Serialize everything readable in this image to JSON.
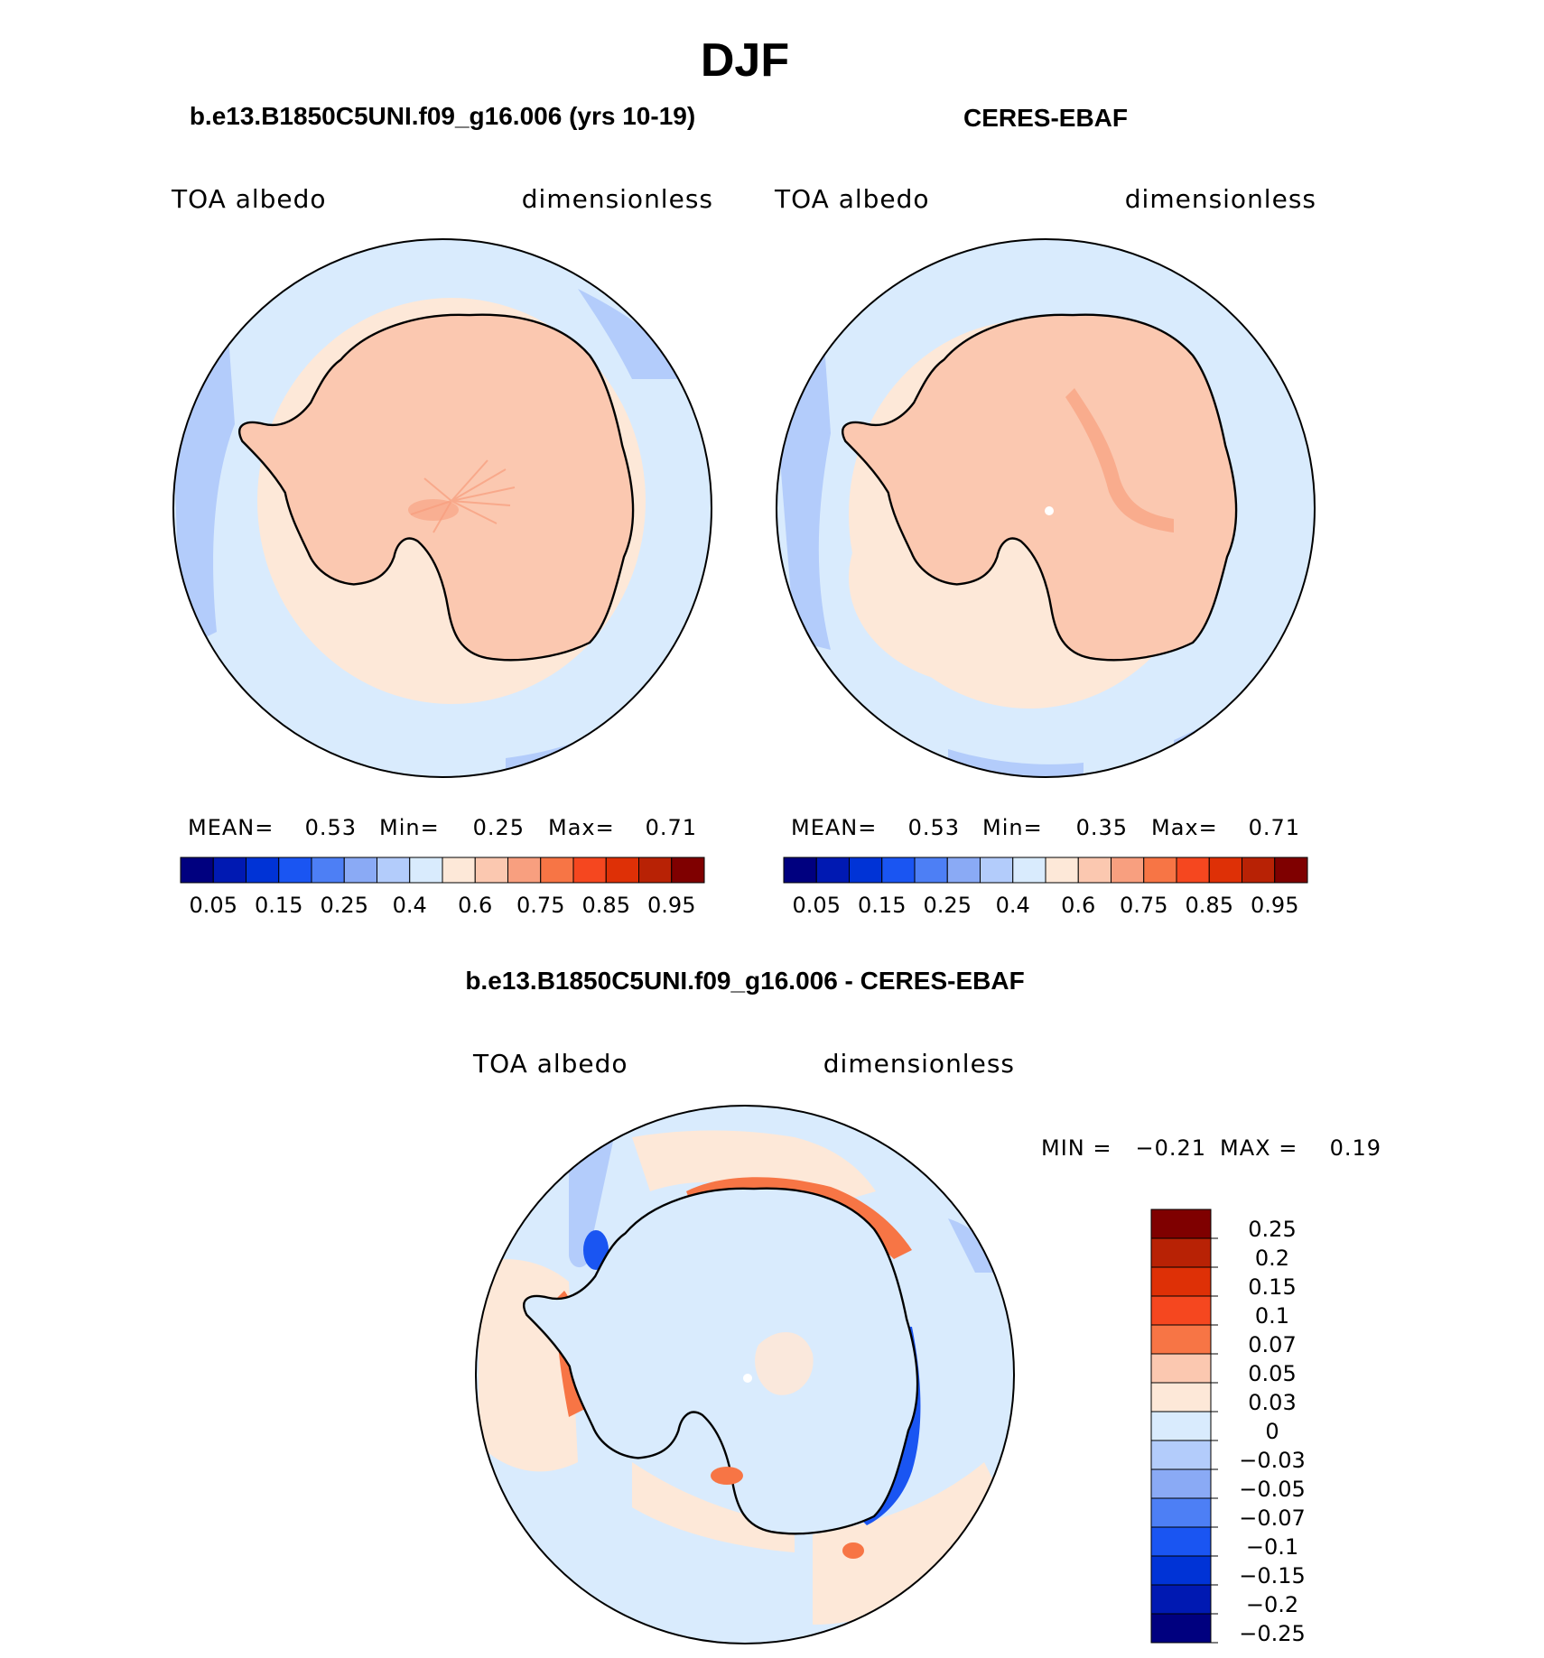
{
  "title": "DJF",
  "panels": [
    {
      "id": "model",
      "heading": "b.e13.B1850C5UNI.f09_g16.006 (yrs 10-19)",
      "variable": "TOA albedo",
      "units": "dimensionless",
      "stats": {
        "mean_label": "MEAN=",
        "mean": "0.53",
        "min_label": "Min=",
        "min": "0.25",
        "max_label": "Max=",
        "max": "0.71"
      }
    },
    {
      "id": "obs",
      "heading": "CERES-EBAF",
      "variable": "TOA albedo",
      "units": "dimensionless",
      "stats": {
        "mean_label": "MEAN=",
        "mean": "0.53",
        "min_label": "Min=",
        "min": "0.35",
        "max_label": "Max=",
        "max": "0.71"
      }
    },
    {
      "id": "diff",
      "heading": "b.e13.B1850C5UNI.f09_g16.006 - CERES-EBAF",
      "variable": "TOA albedo",
      "units": "dimensionless",
      "stats": {
        "min_label": "MIN =",
        "min": "−0.21",
        "max_label": "MAX =",
        "max": "0.19"
      }
    }
  ],
  "colorbar_abs": {
    "colors": [
      "#00007f",
      "#0019b2",
      "#0033d6",
      "#1a55f2",
      "#4d7ff5",
      "#8aaaf5",
      "#b3ccfb",
      "#d9ebfd",
      "#fde8d8",
      "#fbc8b0",
      "#f89f7f",
      "#f77545",
      "#f5471f",
      "#de3006",
      "#b82205",
      "#7f0000"
    ],
    "tick_labels": [
      "0.05",
      "0.15",
      "0.25",
      "0.4",
      "0.6",
      "0.75",
      "0.85",
      "0.95"
    ]
  },
  "colorbar_diff": {
    "colors": [
      "#7f0000",
      "#b82205",
      "#de3006",
      "#f5471f",
      "#f77545",
      "#fbc8b0",
      "#fde8d8",
      "#d9ebfd",
      "#b3ccfb",
      "#8aaaf5",
      "#4d7ff5",
      "#1a55f2",
      "#0033d6",
      "#0019b2",
      "#00007f"
    ],
    "tick_labels": [
      "0.25",
      "0.2",
      "0.15",
      "0.1",
      "0.07",
      "0.05",
      "0.03",
      "0",
      "−0.03",
      "−0.05",
      "−0.07",
      "−0.1",
      "−0.15",
      "−0.2",
      "−0.25"
    ]
  },
  "map_colors": {
    "ocean": "#d9ebfd",
    "ocean_edge": "#b3ccfb",
    "sea_ice": "#fde8d8",
    "ice_sheet": "#fbc8b0",
    "ice_streak": "#f89f7f",
    "diff_pos_strong": "#f5471f",
    "diff_pos": "#f77545",
    "diff_neg": "#1a55f2"
  }
}
